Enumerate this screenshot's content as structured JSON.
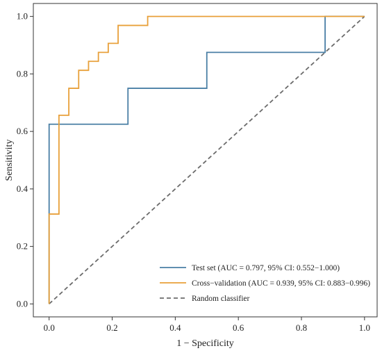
{
  "chart_data": {
    "type": "line",
    "title": "",
    "xlabel": "1 − Specificity",
    "ylabel": "Sensitivity",
    "xlim": [
      -0.05,
      1.04
    ],
    "ylim": [
      -0.045,
      1.045
    ],
    "x_ticks": [
      "0.0",
      "0.2",
      "0.4",
      "0.6",
      "0.8",
      "1.0"
    ],
    "y_ticks": [
      "0.0",
      "0.2",
      "0.4",
      "0.6",
      "0.8",
      "1.0"
    ],
    "grid": false,
    "legend_position": "bottom-right",
    "series": [
      {
        "name": "Test set (AUC = 0.797, 95% CI: 0.552−1.000)",
        "color": "#4a7fa5",
        "style": "solid",
        "points": [
          [
            0.0,
            0.0
          ],
          [
            0.0,
            0.625
          ],
          [
            0.25,
            0.625
          ],
          [
            0.25,
            0.75
          ],
          [
            0.5,
            0.75
          ],
          [
            0.5,
            0.875
          ],
          [
            0.875,
            0.875
          ],
          [
            0.875,
            1.0
          ],
          [
            1.0,
            1.0
          ]
        ]
      },
      {
        "name": "Cross−validation (AUC = 0.939, 95% CI: 0.883−0.996)",
        "color": "#e8a03a",
        "style": "solid",
        "points": [
          [
            0.0,
            0.0
          ],
          [
            0.0,
            0.3125
          ],
          [
            0.03125,
            0.3125
          ],
          [
            0.03125,
            0.65625
          ],
          [
            0.0625,
            0.65625
          ],
          [
            0.0625,
            0.75
          ],
          [
            0.09375,
            0.75
          ],
          [
            0.09375,
            0.8125
          ],
          [
            0.125,
            0.8125
          ],
          [
            0.125,
            0.84375
          ],
          [
            0.15625,
            0.84375
          ],
          [
            0.15625,
            0.875
          ],
          [
            0.1875,
            0.875
          ],
          [
            0.1875,
            0.90625
          ],
          [
            0.21875,
            0.90625
          ],
          [
            0.21875,
            0.96875
          ],
          [
            0.3125,
            0.96875
          ],
          [
            0.3125,
            1.0
          ],
          [
            1.0,
            1.0
          ]
        ]
      },
      {
        "name": "Random classifier",
        "color": "#6b6b6b",
        "style": "dashed",
        "points": [
          [
            0.0,
            0.0
          ],
          [
            1.0,
            1.0
          ]
        ]
      }
    ]
  }
}
